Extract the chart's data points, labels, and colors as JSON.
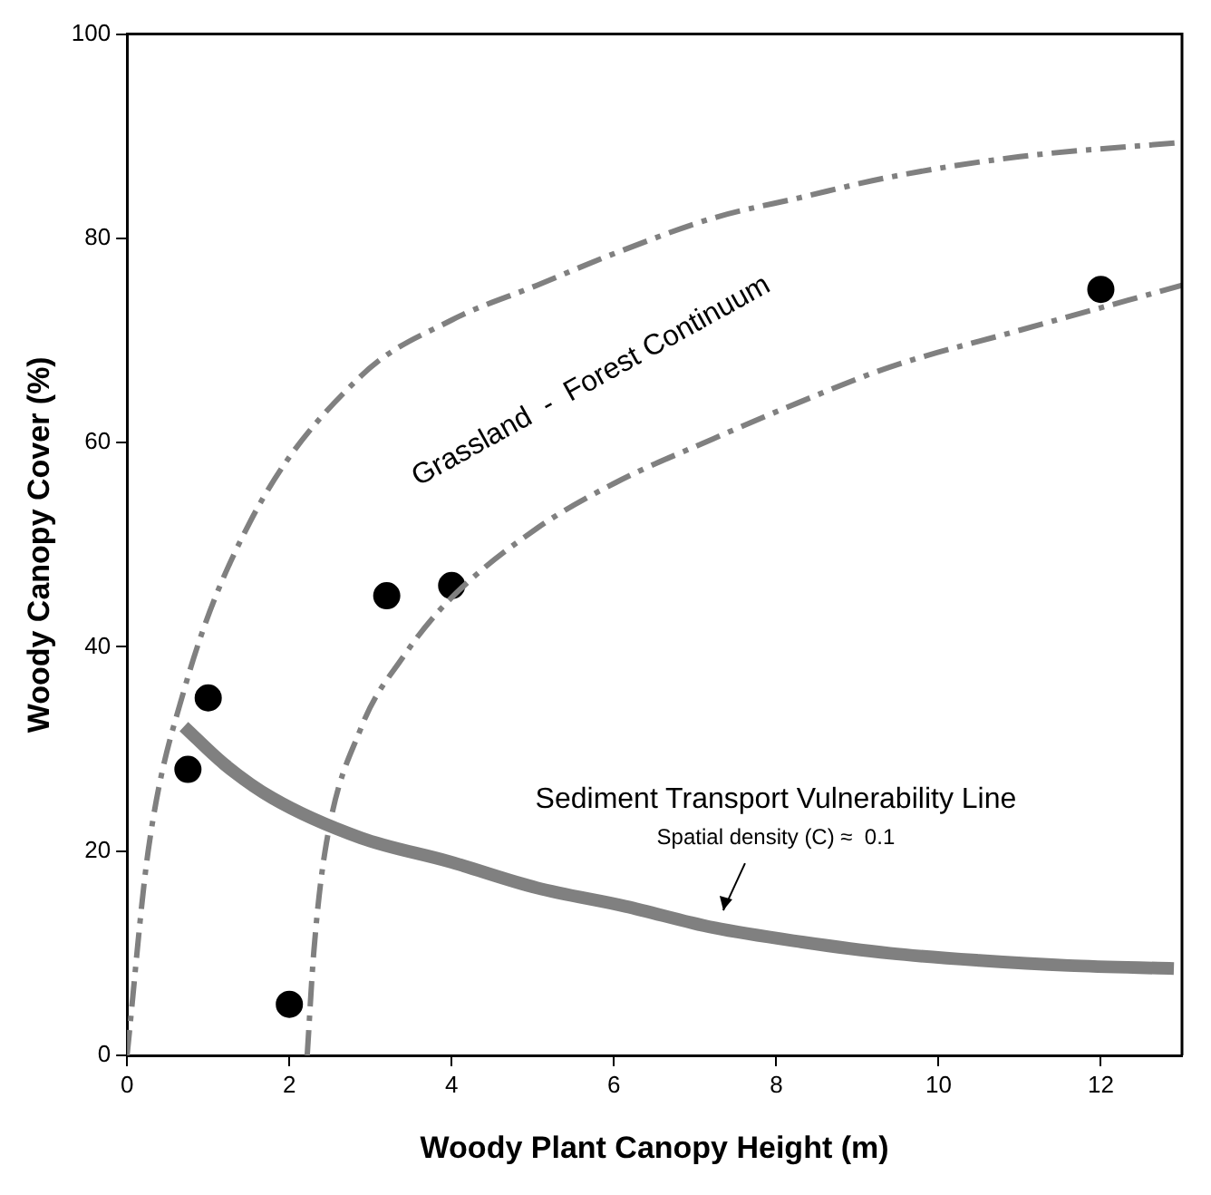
{
  "chart_data": {
    "type": "scatter",
    "xlabel": "Woody Plant Canopy Height (m)",
    "ylabel": "Woody Canopy Cover (%)",
    "xlim": [
      0,
      13
    ],
    "ylim": [
      0,
      100
    ],
    "xticks": [
      0,
      2,
      4,
      6,
      8,
      10,
      12
    ],
    "yticks": [
      0,
      20,
      40,
      60,
      80,
      100
    ],
    "grid": false,
    "legend": false,
    "marker": "circle",
    "series": [
      {
        "color": "#000000",
        "x": [
          0.75,
          1,
          2,
          3.2,
          4,
          12
        ],
        "values": [
          28,
          35,
          5,
          45,
          46,
          75
        ]
      },
      {
        "type": "line",
        "color": "#808080",
        "line_style": "dashed",
        "marker": "none",
        "x": [
          0,
          0.26,
          0.7,
          1.5,
          2.88,
          4,
          5.05,
          6,
          7.23,
          8.3,
          9.4,
          11,
          13
        ],
        "values": [
          0,
          20,
          35.7,
          52,
          66.5,
          72,
          75.4,
          78.5,
          82,
          84,
          86,
          88,
          89.4
        ]
      },
      {
        "type": "line",
        "color": "#808080",
        "line_style": "dashed",
        "marker": "none",
        "x": [
          2.22,
          2.3,
          2.44,
          2.88,
          3.4,
          3.96,
          5.05,
          6,
          7.23,
          8.3,
          9.4,
          11,
          13
        ],
        "values": [
          0,
          10,
          20,
          32,
          39,
          44.5,
          51.6,
          56,
          60.4,
          64,
          67.4,
          71,
          75.4
        ]
      },
      {
        "type": "line",
        "color": "#808080",
        "line_style": "solid",
        "marker": "none",
        "x": [
          0.7,
          1.2,
          1.79,
          2.88,
          3.96,
          5.05,
          6.14,
          7.23,
          8.32,
          9.4,
          10.5,
          11.6,
          12.9
        ],
        "values": [
          32.2,
          28.5,
          25.2,
          21.3,
          19,
          16.4,
          14.6,
          12.5,
          11.1,
          10,
          9.3,
          8.8,
          8.5
        ]
      }
    ],
    "annotations": [
      "Grassland  -  Forest Continuum",
      "Sediment Transport Vulnerability Line",
      "Spatial density (C) ≈  0.1"
    ]
  }
}
